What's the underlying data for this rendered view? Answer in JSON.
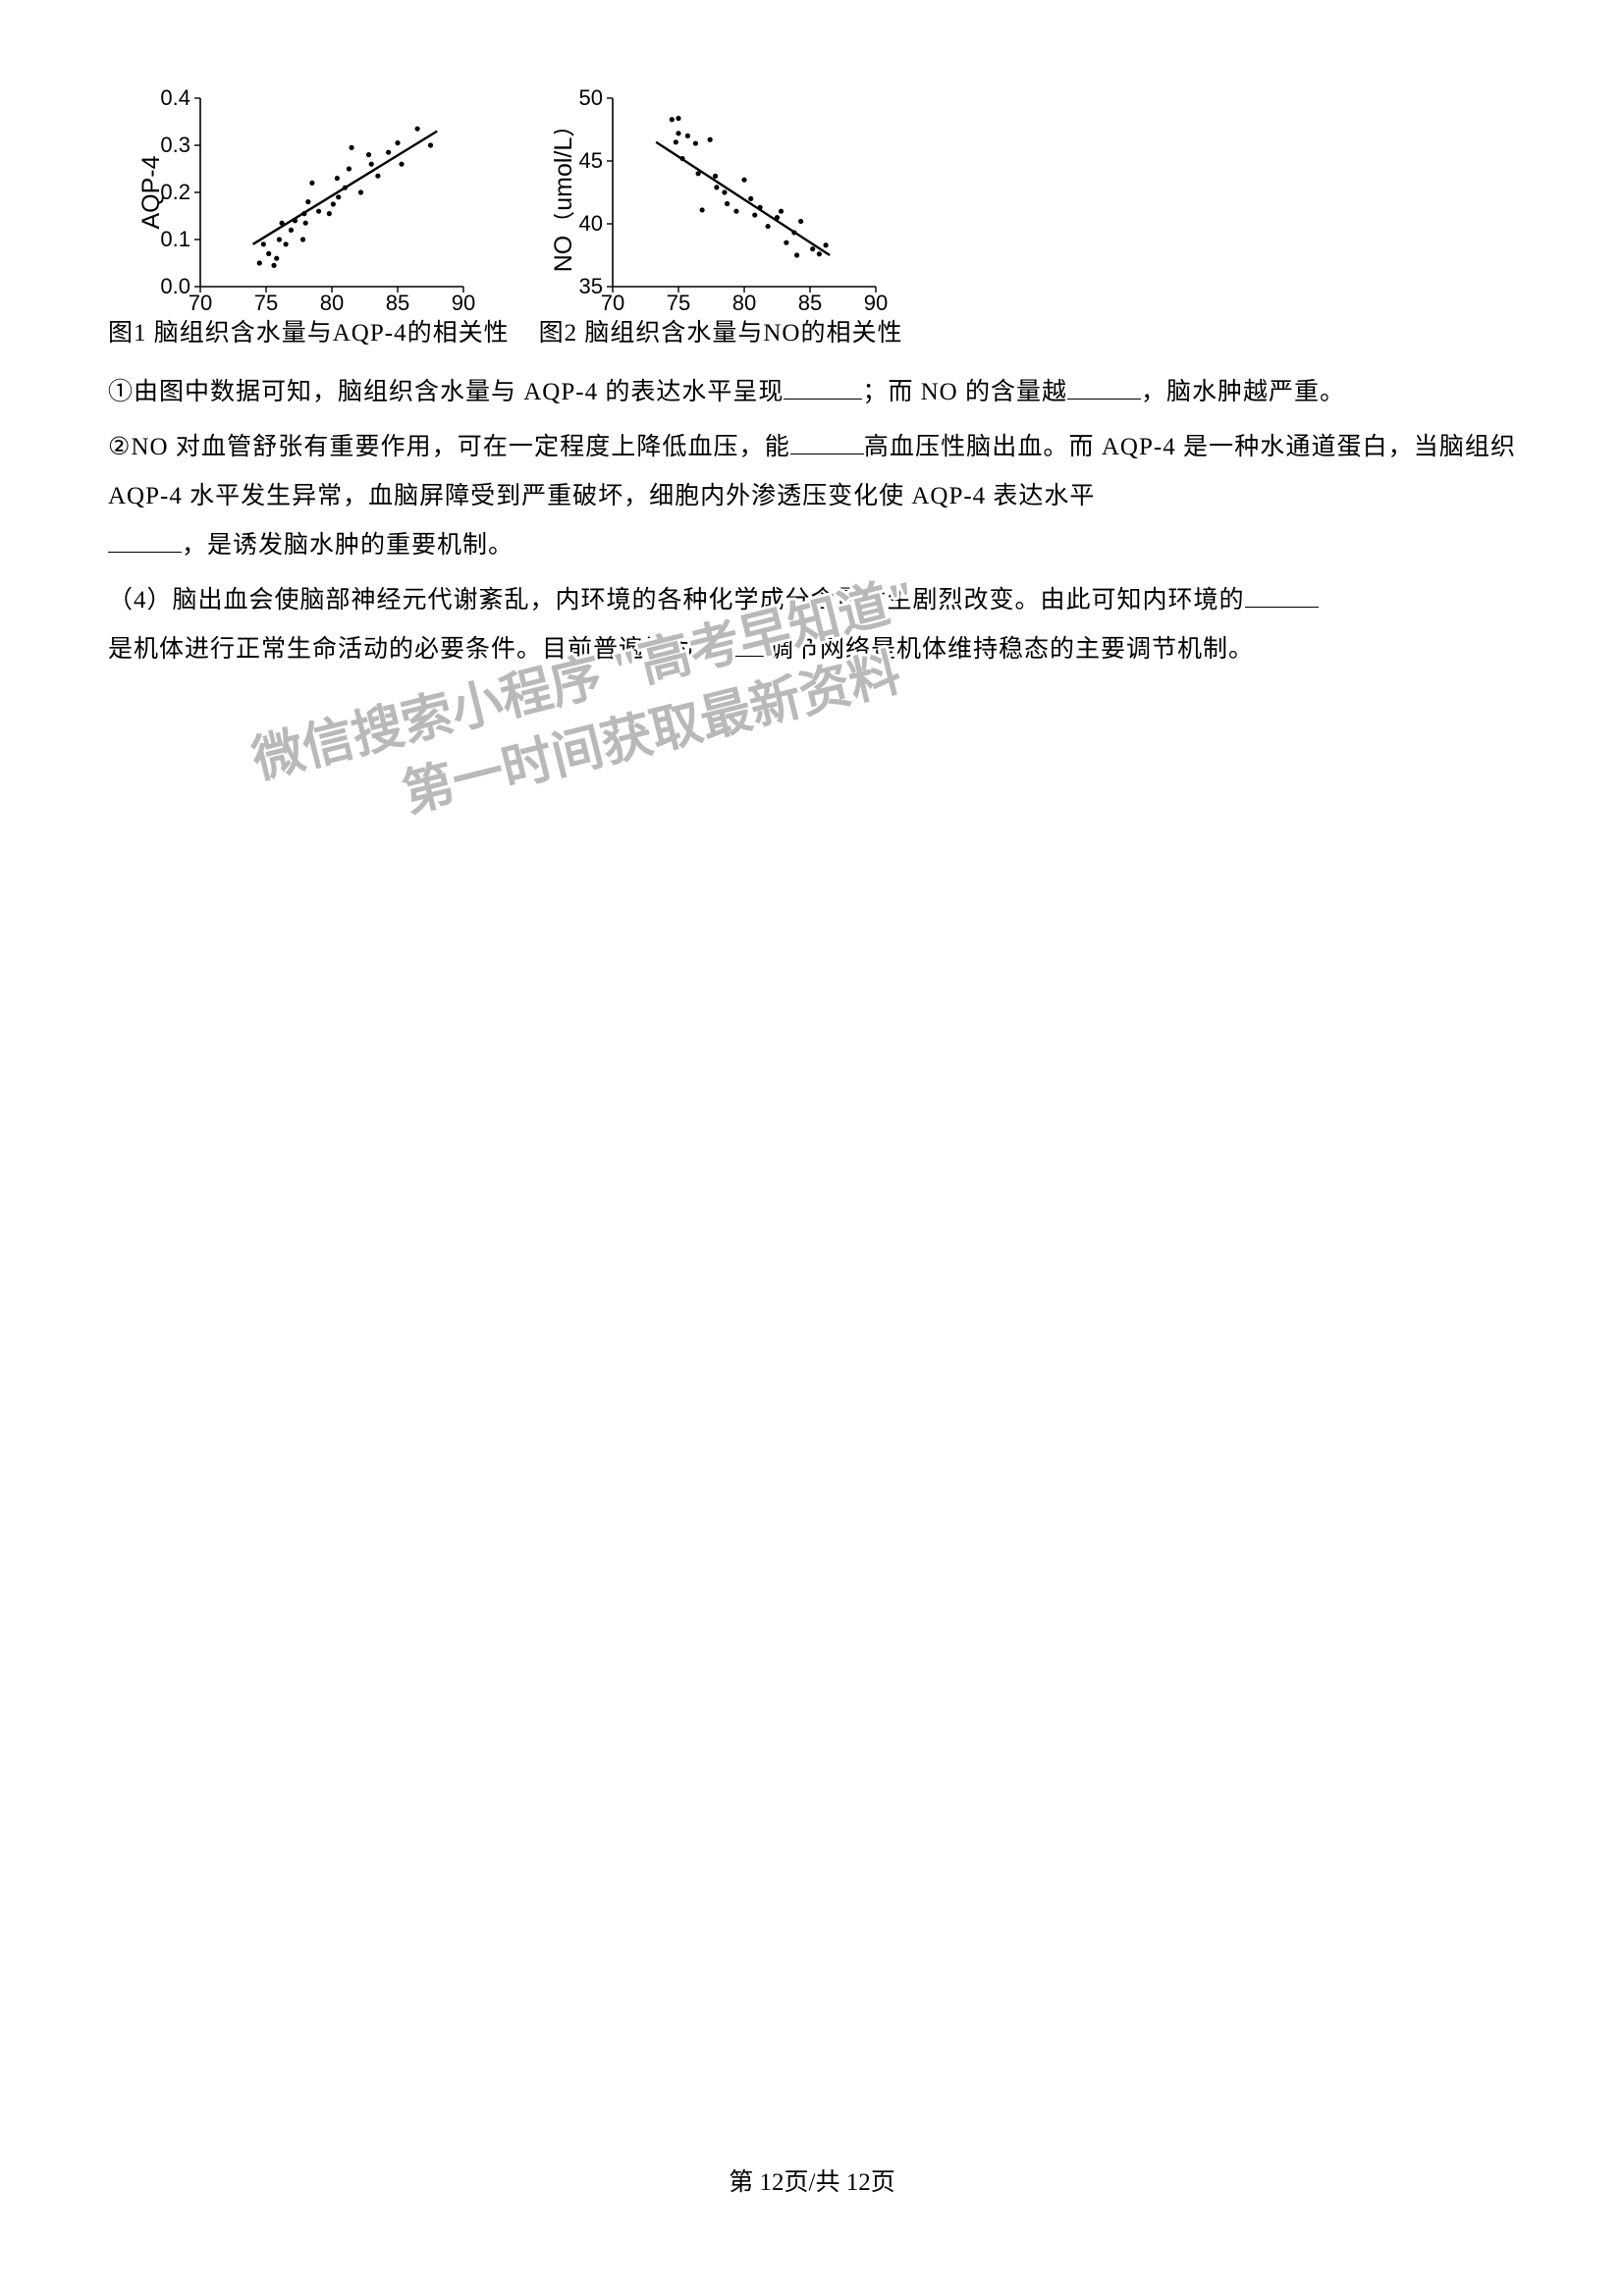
{
  "chart1": {
    "type": "scatter",
    "caption": "图1 脑组织含水量与AQP-4的相关性",
    "ylabel": "AQP-4",
    "xlim": [
      70,
      90
    ],
    "xticks": [
      70,
      75,
      80,
      85,
      90
    ],
    "ylim": [
      0.0,
      0.4
    ],
    "yticks": [
      0.0,
      0.1,
      0.2,
      0.3,
      0.4
    ],
    "ytick_labels": [
      "0.0",
      "0.1",
      "0.2",
      "0.3",
      "0.4"
    ],
    "axis_fontsize": 22,
    "label_fontsize": 25,
    "point_color": "#000000",
    "line_color": "#000000",
    "line_width": 2.4,
    "point_radius": 2.6,
    "plot_bg": "#ffffff",
    "line_x": [
      74,
      88
    ],
    "line_y": [
      0.09,
      0.33
    ],
    "points": [
      [
        74.5,
        0.05
      ],
      [
        74.8,
        0.09
      ],
      [
        75.2,
        0.07
      ],
      [
        75.6,
        0.045
      ],
      [
        75.8,
        0.06
      ],
      [
        76.0,
        0.1
      ],
      [
        76.2,
        0.135
      ],
      [
        76.5,
        0.09
      ],
      [
        76.9,
        0.12
      ],
      [
        77.2,
        0.14
      ],
      [
        77.8,
        0.1
      ],
      [
        77.9,
        0.155
      ],
      [
        78.0,
        0.135
      ],
      [
        78.2,
        0.18
      ],
      [
        78.5,
        0.22
      ],
      [
        79.0,
        0.16
      ],
      [
        79.8,
        0.155
      ],
      [
        80.1,
        0.175
      ],
      [
        80.4,
        0.23
      ],
      [
        80.5,
        0.19
      ],
      [
        81.0,
        0.21
      ],
      [
        81.3,
        0.25
      ],
      [
        81.5,
        0.295
      ],
      [
        82.2,
        0.2
      ],
      [
        82.8,
        0.28
      ],
      [
        83.0,
        0.26
      ],
      [
        83.5,
        0.235
      ],
      [
        84.3,
        0.285
      ],
      [
        85.0,
        0.305
      ],
      [
        85.3,
        0.26
      ],
      [
        86.5,
        0.335
      ],
      [
        87.5,
        0.3
      ]
    ]
  },
  "chart2": {
    "type": "scatter",
    "caption": "图2 脑组织含水量与NO的相关性",
    "ylabel": "NO（umol/L）",
    "xlim": [
      70,
      90
    ],
    "xticks": [
      70,
      75,
      80,
      85,
      90
    ],
    "ylim": [
      35,
      50
    ],
    "yticks": [
      35,
      40,
      45,
      50
    ],
    "axis_fontsize": 22,
    "label_fontsize": 25,
    "point_color": "#000000",
    "line_color": "#000000",
    "line_width": 2.4,
    "point_radius": 2.6,
    "plot_bg": "#ffffff",
    "line_x": [
      73.3,
      86.5
    ],
    "line_y": [
      46.5,
      37.5
    ],
    "points": [
      [
        74.5,
        48.3
      ],
      [
        74.8,
        46.5
      ],
      [
        75.0,
        48.4
      ],
      [
        75.0,
        47.2
      ],
      [
        75.3,
        45.2
      ],
      [
        75.7,
        47.0
      ],
      [
        76.3,
        46.4
      ],
      [
        76.5,
        44.0
      ],
      [
        76.8,
        41.1
      ],
      [
        77.4,
        46.7
      ],
      [
        77.8,
        43.8
      ],
      [
        77.9,
        42.9
      ],
      [
        78.5,
        42.5
      ],
      [
        78.7,
        41.6
      ],
      [
        79.4,
        41.0
      ],
      [
        80.0,
        43.5
      ],
      [
        80.5,
        42.0
      ],
      [
        80.8,
        40.7
      ],
      [
        81.2,
        41.3
      ],
      [
        81.8,
        39.8
      ],
      [
        82.5,
        40.5
      ],
      [
        82.8,
        41.0
      ],
      [
        83.2,
        38.5
      ],
      [
        83.8,
        39.3
      ],
      [
        84.0,
        37.5
      ],
      [
        84.3,
        40.2
      ],
      [
        85.2,
        38.0
      ],
      [
        85.7,
        37.6
      ],
      [
        86.2,
        38.3
      ]
    ]
  },
  "text": {
    "p1a": "①由图中数据可知，脑组织含水量与 AQP-4 的表达水平呈现",
    "p1b": "；而 NO 的含量越",
    "p1c": "，脑水肿越严重。",
    "p2a": "②NO 对血管舒张有重要作用，可在一定程度上降低血压，能",
    "p2b": "高血压性脑出血。而 AQP-4 是一种水通",
    "p2c": "道蛋白，当脑组织 AQP-4 水平发生异常，血脑屏障受到严重破坏，细胞内外渗透压变化使 AQP-4 表达水平",
    "p2d": "，是诱发脑水肿的重要机制。",
    "p3a": "（4）脑出血会使脑部神经元代谢紊乱，内环境的各种化学成分含量发生剧烈改变。由此可知内环境的",
    "p3b": "是机体进行正常生命活动的必要条件。目前普遍认为",
    "p3c": "调节网络是机体维持稳态的主要调节机制。"
  },
  "watermark": {
    "line1": "微信搜索小程序 \"高考早知道\"",
    "line2": "第一时间获取最新资料",
    "color": "#b9b9b9",
    "outline": "#ffffff",
    "fontsize": 52
  },
  "footer": {
    "text": "第 12页/共 12页"
  }
}
